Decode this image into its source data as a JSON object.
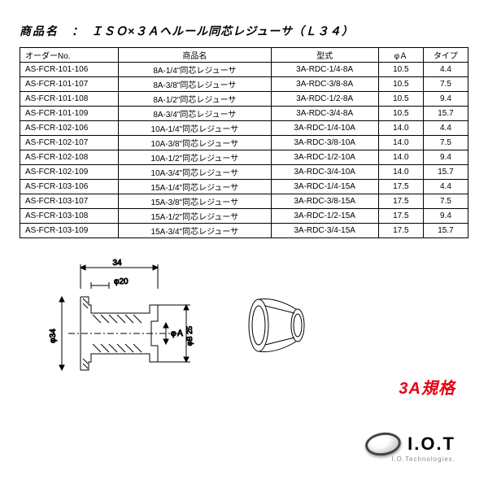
{
  "title_label": "商品名　：",
  "title_name": "ＩＳＯ×３Ａヘルール同芯レジューサ（Ｌ３４）",
  "columns": [
    "オーダーNo.",
    "商品名",
    "型式",
    "φＡ",
    "タイプ"
  ],
  "rows": [
    [
      "AS-FCR-101-106",
      "8A-1/4\"同芯レジューサ",
      "3A-RDC-1/4-8A",
      "10.5",
      "4.4"
    ],
    [
      "AS-FCR-101-107",
      "8A-3/8\"同芯レジューサ",
      "3A-RDC-3/8-8A",
      "10.5",
      "7.5"
    ],
    [
      "AS-FCR-101-108",
      "8A-1/2\"同芯レジューサ",
      "3A-RDC-1/2-8A",
      "10.5",
      "9.4"
    ],
    [
      "AS-FCR-101-109",
      "8A-3/4\"同芯レジューサ",
      "3A-RDC-3/4-8A",
      "10.5",
      "15.7"
    ],
    [
      "AS-FCR-102-106",
      "10A-1/4\"同芯レジューサ",
      "3A-RDC-1/4-10A",
      "14.0",
      "4.4"
    ],
    [
      "AS-FCR-102-107",
      "10A-3/8\"同芯レジューサ",
      "3A-RDC-3/8-10A",
      "14.0",
      "7.5"
    ],
    [
      "AS-FCR-102-108",
      "10A-1/2\"同芯レジューサ",
      "3A-RDC-1/2-10A",
      "14.0",
      "9.4"
    ],
    [
      "AS-FCR-102-109",
      "10A-3/4\"同芯レジューサ",
      "3A-RDC-3/4-10A",
      "14.0",
      "15.7"
    ],
    [
      "AS-FCR-103-106",
      "15A-1/4\"同芯レジューサ",
      "3A-RDC-1/4-15A",
      "17.5",
      "4.4"
    ],
    [
      "AS-FCR-103-107",
      "15A-3/8\"同芯レジューサ",
      "3A-RDC-3/8-15A",
      "17.5",
      "7.5"
    ],
    [
      "AS-FCR-103-108",
      "15A-1/2\"同芯レジューサ",
      "3A-RDC-1/2-15A",
      "17.5",
      "9.4"
    ],
    [
      "AS-FCR-103-109",
      "15A-3/4\"同芯レジューサ",
      "3A-RDC-3/4-15A",
      "17.5",
      "15.7"
    ]
  ],
  "diagram": {
    "dim_top": "34",
    "dim_inner_top": "φ20",
    "dim_left": "φ34",
    "dim_rightA": "φＡ",
    "dim_rightB": "φB 25",
    "stroke": "#000000",
    "hatch": "#000000",
    "centerline": "#000000"
  },
  "badge_3a": "3A規格",
  "logo_text": "I.O.T",
  "logo_sub": "I.O.Technologies.",
  "colors": {
    "border": "#000000",
    "text": "#000000",
    "accent_red": "#e60012",
    "logo_sub": "#888888",
    "background": "#ffffff"
  },
  "typography": {
    "title_fontsize": 14,
    "table_fontsize": 10,
    "badge_fontsize": 20,
    "logo_fontsize": 22
  }
}
